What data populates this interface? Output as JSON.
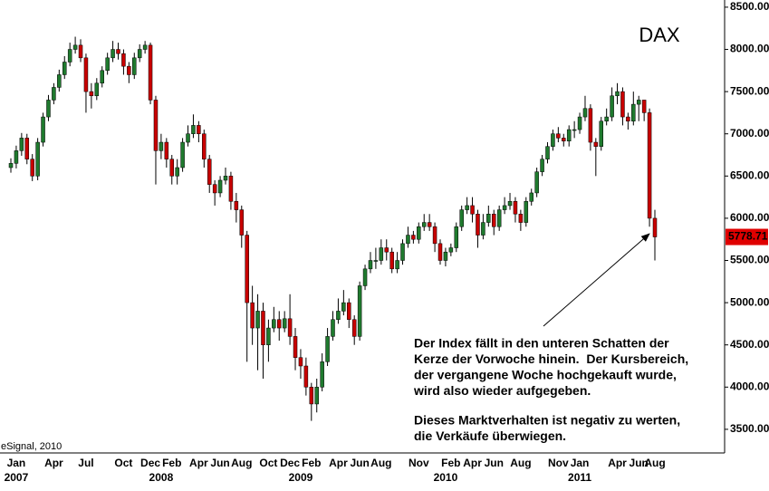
{
  "chart_data": {
    "type": "candlestick",
    "title": "DAX",
    "source": "eSignal, 2010",
    "categories": [
      null,
      "Jan",
      null,
      null,
      null,
      null,
      null,
      null,
      "Apr",
      null,
      null,
      null,
      null,
      null,
      "Jul",
      null,
      null,
      null,
      null,
      null,
      null,
      "Oct",
      null,
      null,
      null,
      null,
      "Dec",
      null,
      null,
      null,
      "Feb",
      null,
      null,
      null,
      null,
      "Apr",
      null,
      null,
      null,
      "Jun",
      null,
      null,
      null,
      "Aug",
      null,
      null,
      null,
      null,
      "Oct",
      null,
      null,
      null,
      "Dec",
      null,
      null,
      null,
      "Feb",
      null,
      null,
      null,
      null,
      "Apr",
      null,
      null,
      null,
      "Jun",
      null,
      null,
      null,
      "Aug",
      null,
      null,
      null,
      null,
      null,
      null,
      "Nov",
      null,
      null,
      null,
      null,
      null,
      "Feb",
      null,
      null,
      null,
      "Apr",
      null,
      null,
      null,
      "Jun",
      null,
      null,
      null,
      null,
      "Aug",
      null,
      null,
      null,
      null,
      null,
      null,
      "Nov",
      null,
      null,
      null,
      "Jan",
      null,
      null,
      null,
      null,
      null,
      null,
      "Apr",
      null,
      null,
      null,
      "Jun",
      null,
      null,
      "Aug"
    ],
    "years": [
      null,
      "2007",
      null,
      null,
      null,
      null,
      null,
      null,
      null,
      null,
      null,
      null,
      null,
      null,
      null,
      null,
      null,
      null,
      null,
      null,
      null,
      null,
      null,
      null,
      null,
      null,
      null,
      null,
      "2008",
      null,
      null,
      null,
      null,
      null,
      null,
      null,
      null,
      null,
      null,
      null,
      null,
      null,
      null,
      null,
      null,
      null,
      null,
      null,
      null,
      null,
      null,
      null,
      null,
      null,
      "2009",
      null,
      null,
      null,
      null,
      null,
      null,
      null,
      null,
      null,
      null,
      null,
      null,
      null,
      null,
      null,
      null,
      null,
      null,
      null,
      null,
      null,
      null,
      null,
      null,
      null,
      null,
      "2010",
      null,
      null,
      null,
      null,
      null,
      null,
      null,
      null,
      null,
      null,
      null,
      null,
      null,
      null,
      null,
      null,
      null,
      null,
      null,
      null,
      null,
      null,
      null,
      null,
      "2011",
      null,
      null,
      null,
      null,
      null,
      null,
      null,
      null,
      null,
      null,
      null,
      null,
      null,
      null
    ],
    "open": [
      6600,
      6650,
      6800,
      6950,
      6700,
      6500,
      6900,
      7200,
      7400,
      7550,
      7700,
      7850,
      8000,
      8050,
      7900,
      7500,
      7450,
      7600,
      7750,
      7900,
      8000,
      7950,
      7800,
      7700,
      7900,
      8000,
      8050,
      7400,
      6800,
      6900,
      6700,
      6500,
      6600,
      6900,
      7000,
      7100,
      7000,
      6700,
      6400,
      6300,
      6450,
      6500,
      6200,
      6100,
      5800,
      5000,
      4700,
      4900,
      4500,
      4700,
      4800,
      4700,
      4810,
      4600,
      4350,
      4250,
      4000,
      3800,
      4000,
      4300,
      4600,
      4800,
      4900,
      5000,
      4800,
      4600,
      5200,
      5400,
      5500,
      5500,
      5650,
      5600,
      5400,
      5500,
      5700,
      5800,
      5750,
      5900,
      5950,
      5900,
      5700,
      5500,
      5600,
      5650,
      5900,
      6100,
      6150,
      6050,
      5800,
      5950,
      6050,
      5900,
      6100,
      6150,
      6200,
      6050,
      5950,
      6200,
      6300,
      6550,
      6700,
      6850,
      7000,
      6950,
      6914,
      7050,
      7050,
      7200,
      7300,
      6900,
      6850,
      7150,
      7200,
      7450,
      7500,
      7200,
      7150,
      7350,
      7400,
      7250,
      6000
    ],
    "high": [
      6710,
      6860,
      7010,
      7000,
      6760,
      6950,
      7250,
      7460,
      7600,
      7760,
      7920,
      8080,
      8150,
      8120,
      7950,
      7600,
      7660,
      7800,
      7960,
      8100,
      8080,
      8000,
      7850,
      7960,
      8060,
      8100,
      8080,
      7450,
      7000,
      6950,
      6750,
      6700,
      6950,
      7100,
      7230,
      7150,
      7050,
      6750,
      6450,
      6500,
      6600,
      6550,
      6300,
      6150,
      5850,
      5200,
      5100,
      5000,
      4800,
      4950,
      4900,
      4900,
      5100,
      4700,
      4450,
      4350,
      4050,
      4100,
      4400,
      4700,
      4900,
      5050,
      5150,
      5050,
      4850,
      5250,
      5450,
      5600,
      5650,
      5750,
      5750,
      5650,
      5600,
      5750,
      5900,
      5850,
      5950,
      6050,
      6050,
      5950,
      5750,
      5650,
      5700,
      5950,
      6150,
      6250,
      6250,
      6100,
      6050,
      6150,
      6100,
      6150,
      6250,
      6300,
      6250,
      6100,
      6250,
      6350,
      6600,
      6750,
      6900,
      7050,
      7080,
      7000,
      7100,
      7150,
      7250,
      7450,
      7350,
      6950,
      7200,
      7300,
      7550,
      7600,
      7550,
      7250,
      7500,
      7450,
      7400,
      7300,
      6100
    ],
    "low": [
      6540,
      6590,
      6740,
      6640,
      6440,
      6450,
      6850,
      7150,
      7350,
      7500,
      7650,
      7800,
      7950,
      7850,
      7250,
      7300,
      7400,
      7550,
      7700,
      7850,
      7880,
      7700,
      7600,
      7650,
      7850,
      7950,
      7350,
      6400,
      6700,
      6600,
      6400,
      6400,
      6550,
      6850,
      6950,
      6900,
      6600,
      6300,
      6150,
      6250,
      6400,
      6100,
      5950,
      5650,
      4300,
      4500,
      4200,
      4100,
      4300,
      4650,
      4550,
      4650,
      4500,
      4200,
      4100,
      3900,
      3600,
      3700,
      3950,
      4250,
      4550,
      4750,
      4850,
      4700,
      4500,
      4550,
      5150,
      5350,
      5400,
      5450,
      5500,
      5350,
      5350,
      5450,
      5650,
      5700,
      5700,
      5850,
      5850,
      5600,
      5450,
      5430,
      5550,
      5600,
      5850,
      6050,
      5950,
      5650,
      5750,
      5900,
      5800,
      5850,
      6050,
      6100,
      5950,
      5850,
      5900,
      6150,
      6250,
      6500,
      6650,
      6800,
      6900,
      6850,
      6850,
      6950,
      7000,
      7150,
      6800,
      6500,
      6800,
      7100,
      7150,
      7350,
      7100,
      7050,
      7100,
      7150,
      7150,
      5900,
      5500
    ],
    "close": [
      6650,
      6800,
      6950,
      6700,
      6500,
      6900,
      7200,
      7400,
      7550,
      7700,
      7850,
      8000,
      8050,
      7900,
      7500,
      7450,
      7600,
      7750,
      7900,
      8000,
      7950,
      7800,
      7700,
      7900,
      8000,
      8050,
      7400,
      6800,
      6900,
      6700,
      6500,
      6600,
      6900,
      7000,
      7100,
      7000,
      6700,
      6400,
      6300,
      6450,
      6500,
      6200,
      6100,
      5800,
      5000,
      4700,
      4900,
      4500,
      4700,
      4800,
      4700,
      4810,
      4600,
      4350,
      4250,
      4000,
      3800,
      4000,
      4300,
      4600,
      4800,
      4900,
      5000,
      4800,
      4600,
      5200,
      5400,
      5500,
      5500,
      5650,
      5600,
      5400,
      5500,
      5700,
      5800,
      5750,
      5900,
      5950,
      5900,
      5700,
      5500,
      5600,
      5650,
      5900,
      6100,
      6150,
      6050,
      5800,
      5950,
      6050,
      5900,
      6100,
      6150,
      6200,
      6050,
      5950,
      6200,
      6300,
      6550,
      6700,
      6850,
      7000,
      6950,
      6914,
      7050,
      7050,
      7200,
      7300,
      6900,
      6850,
      7150,
      7200,
      7450,
      7500,
      7200,
      7150,
      7350,
      7400,
      7250,
      6000,
      5778.71
    ],
    "up_color": "#1f7a2e",
    "down_color": "#c80000",
    "ylim": [
      3220,
      8585
    ],
    "yticks": [
      {
        "value": 3500,
        "label": "3500.00"
      },
      {
        "value": 4000,
        "label": "4000.00"
      },
      {
        "value": 4500,
        "label": "4500.00"
      },
      {
        "value": 5000,
        "label": "5000.00"
      },
      {
        "value": 5500,
        "label": "5500.00"
      },
      {
        "value": 6000,
        "label": "6000.00"
      },
      {
        "value": 6500,
        "label": "6500.00"
      },
      {
        "value": 7000,
        "label": "7000.00"
      },
      {
        "value": 7500,
        "label": "7500.00"
      },
      {
        "value": 8000,
        "label": "8000.00"
      },
      {
        "value": 8500,
        "label": "8500.00"
      }
    ],
    "annotation": [
      [
        "Der Index fällt in den unteren Schatten der",
        "Kerze der Vorwoche hinein.  Der Kursbereich,",
        "der vergangene Woche hochgekauft wurde,",
        "wird also wieder aufgegeben."
      ],
      [
        "Dieses Marktverhalten ist negativ zu werten,",
        "die Verkäufe überwiegen."
      ]
    ]
  }
}
